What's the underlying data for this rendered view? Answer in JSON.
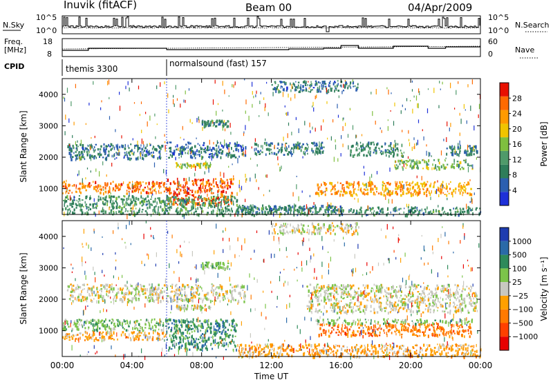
{
  "header": {
    "station": "Inuvik (fitACF)",
    "beam": "Beam 00",
    "date": "04/Apr/2009"
  },
  "noise_panel": {
    "left_label": "N.Sky",
    "right_label": "N.Search",
    "left_ticks": [
      "10^5",
      "10^0"
    ],
    "right_ticks": [
      "10^5",
      "10^0"
    ]
  },
  "freq_panel": {
    "left_label_line1": "Freq.",
    "left_label_line2": "[MHz]",
    "right_label": "Nave",
    "left_ticks": [
      "18",
      "8"
    ],
    "right_ticks": [
      "60",
      "0"
    ]
  },
  "cpid": {
    "label": "CPID",
    "segments": [
      {
        "name": "themis 3300",
        "start_hour": 0
      },
      {
        "name": "normalsound (fast) 157",
        "start_hour": 6
      }
    ]
  },
  "colors": {
    "power": [
      "#1e30d8",
      "#2c5fb0",
      "#2e7d5a",
      "#4f9a6a",
      "#7fbf3f",
      "#f0c400",
      "#ff9a00",
      "#ff6a00",
      "#e81000"
    ],
    "velocity": [
      "#1e3cb0",
      "#2a6aa8",
      "#2e8a5a",
      "#7cc44a",
      "#c8c8c0",
      "#ffa000",
      "#ff7a00",
      "#ff4000",
      "#e80000"
    ]
  },
  "chart_data": [
    {
      "type": "heatmap",
      "title": "Power",
      "xlabel": "Time UT",
      "ylabel": "Slant Range [km]",
      "xlim": [
        0,
        24
      ],
      "ylim": [
        180,
        4500
      ],
      "x_ticks": [
        "00:00",
        "04:00",
        "08:00",
        "12:00",
        "16:00",
        "20:00",
        "00:00"
      ],
      "y_ticks": [
        1000,
        2000,
        3000,
        4000
      ],
      "colorbar": {
        "label": "Power [dB]",
        "ticks": [
          "4",
          "8",
          "12",
          "16",
          "20",
          "24",
          "28"
        ],
        "range": [
          0,
          30
        ]
      },
      "bands": [
        {
          "t0": 0.0,
          "t1": 6.0,
          "r0": 880,
          "r1": 1250,
          "level": 25
        },
        {
          "t0": 6.0,
          "t1": 9.8,
          "r0": 500,
          "r1": 1350,
          "level": 27
        },
        {
          "t0": 0.0,
          "t1": 10.0,
          "r0": 200,
          "r1": 800,
          "level": 10
        },
        {
          "t0": 0.2,
          "t1": 5.8,
          "r0": 1950,
          "r1": 2450,
          "level": 6
        },
        {
          "t0": 6.0,
          "t1": 10.5,
          "r0": 2000,
          "r1": 2500,
          "level": 5
        },
        {
          "t0": 6.5,
          "t1": 8.5,
          "r0": 1700,
          "r1": 1850,
          "level": 17
        },
        {
          "t0": 8.0,
          "t1": 9.5,
          "r0": 3000,
          "r1": 3200,
          "level": 9
        },
        {
          "t0": 10.0,
          "t1": 16.0,
          "r0": 250,
          "r1": 500,
          "level": 6
        },
        {
          "t0": 11.0,
          "t1": 15.0,
          "r0": 2100,
          "r1": 2500,
          "level": 7
        },
        {
          "t0": 14.5,
          "t1": 23.5,
          "r0": 820,
          "r1": 1250,
          "level": 22
        },
        {
          "t0": 16.5,
          "t1": 19.5,
          "r0": 2050,
          "r1": 2500,
          "level": 9
        },
        {
          "t0": 19.0,
          "t1": 23.5,
          "r0": 1650,
          "r1": 1950,
          "level": 14
        },
        {
          "t0": 22.0,
          "t1": 23.8,
          "r0": 2100,
          "r1": 2400,
          "level": 7
        },
        {
          "t0": 10.0,
          "t1": 24.0,
          "r0": 180,
          "r1": 450,
          "level": 9
        },
        {
          "t0": 12.0,
          "t1": 17.0,
          "r0": 4100,
          "r1": 4450,
          "level": 6
        }
      ]
    },
    {
      "type": "heatmap",
      "title": "Velocity",
      "xlabel": "Time UT",
      "ylabel": "Slant Range [km]",
      "xlim": [
        0,
        24
      ],
      "ylim": [
        180,
        4500
      ],
      "x_ticks": [
        "00:00",
        "04:00",
        "08:00",
        "12:00",
        "16:00",
        "20:00",
        "00:00"
      ],
      "y_ticks": [
        1000,
        2000,
        3000,
        4000
      ],
      "colorbar": {
        "label": "Velocity [m s⁻¹]",
        "ticks": [
          "1000",
          "500",
          "100",
          "25",
          "−25",
          "−100",
          "−500",
          "−1000"
        ]
      },
      "bands": [
        {
          "t0": 0.0,
          "t1": 6.0,
          "r0": 1000,
          "r1": 1400,
          "level": 3
        },
        {
          "t0": 0.0,
          "t1": 6.0,
          "r0": 720,
          "r1": 1000,
          "level": 5
        },
        {
          "t0": 6.0,
          "t1": 10.0,
          "r0": 400,
          "r1": 1400,
          "level": 2
        },
        {
          "t0": 0.2,
          "t1": 10.5,
          "r0": 1950,
          "r1": 2500,
          "level": 4
        },
        {
          "t0": 6.5,
          "t1": 8.5,
          "r0": 1700,
          "r1": 1850,
          "level": 4
        },
        {
          "t0": 14.5,
          "t1": 23.5,
          "r0": 850,
          "r1": 1250,
          "level": 6
        },
        {
          "t0": 14.5,
          "t1": 23.5,
          "r0": 1250,
          "r1": 1400,
          "level": 3
        },
        {
          "t0": 14.0,
          "t1": 23.8,
          "r0": 1600,
          "r1": 2500,
          "level": 4
        },
        {
          "t0": 10.0,
          "t1": 24.0,
          "r0": 200,
          "r1": 600,
          "level": 5
        },
        {
          "t0": 8.0,
          "t1": 9.5,
          "r0": 3000,
          "r1": 3200,
          "level": 3
        },
        {
          "t0": 12.0,
          "t1": 17.0,
          "r0": 4100,
          "r1": 4450,
          "level": 4
        }
      ]
    }
  ]
}
